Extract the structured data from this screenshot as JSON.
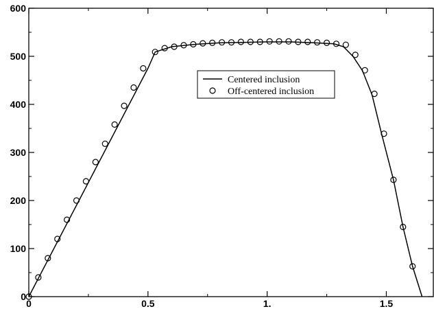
{
  "chart_data": {
    "type": "line",
    "title": "",
    "xlabel": "",
    "ylabel": "",
    "xlim": [
      0,
      1.7
    ],
    "ylim": [
      0,
      600
    ],
    "x_ticks": [
      0,
      0.5,
      1,
      1.5
    ],
    "x_tick_labels": [
      "0",
      "0.5",
      "1.",
      "1.5"
    ],
    "y_ticks": [
      0,
      100,
      200,
      300,
      400,
      500,
      600
    ],
    "y_tick_labels": [
      "0",
      "100",
      "200",
      "300",
      "400",
      "500",
      "600"
    ],
    "grid": false,
    "legend_position": "upper-center",
    "series": [
      {
        "name": "Centered inclusion",
        "style": "solid-line",
        "color": "#000000",
        "x": [
          0,
          0.5,
          0.53,
          0.6,
          0.7,
          0.8,
          0.9,
          1.0,
          1.1,
          1.2,
          1.28,
          1.32,
          1.36,
          1.4,
          1.44,
          1.48,
          1.53,
          1.57,
          1.61,
          1.65
        ],
        "y": [
          0,
          475,
          509,
          520,
          525,
          528,
          529,
          530,
          530,
          528,
          526,
          520,
          500,
          470,
          420,
          339,
          243,
          145,
          63,
          0
        ]
      },
      {
        "name": "Off-centered inclusion",
        "style": "open-circle-markers",
        "color": "#000000",
        "x": [
          0,
          0.04,
          0.08,
          0.12,
          0.16,
          0.2,
          0.24,
          0.28,
          0.32,
          0.36,
          0.4,
          0.44,
          0.48,
          0.53,
          0.57,
          0.61,
          0.65,
          0.69,
          0.73,
          0.77,
          0.81,
          0.85,
          0.89,
          0.93,
          0.97,
          1.01,
          1.05,
          1.09,
          1.13,
          1.17,
          1.21,
          1.25,
          1.29,
          1.33,
          1.37,
          1.41,
          1.45,
          1.49,
          1.53,
          1.57,
          1.61
        ],
        "y": [
          0,
          40,
          80,
          120,
          160,
          200,
          240,
          280,
          318,
          358,
          397,
          435,
          475,
          509,
          517,
          520,
          523,
          525,
          527,
          528,
          529,
          529,
          530,
          530,
          530,
          531,
          531,
          531,
          530,
          530,
          529,
          528,
          526,
          524,
          503,
          471,
          422,
          339,
          243,
          145,
          63
        ]
      }
    ]
  }
}
